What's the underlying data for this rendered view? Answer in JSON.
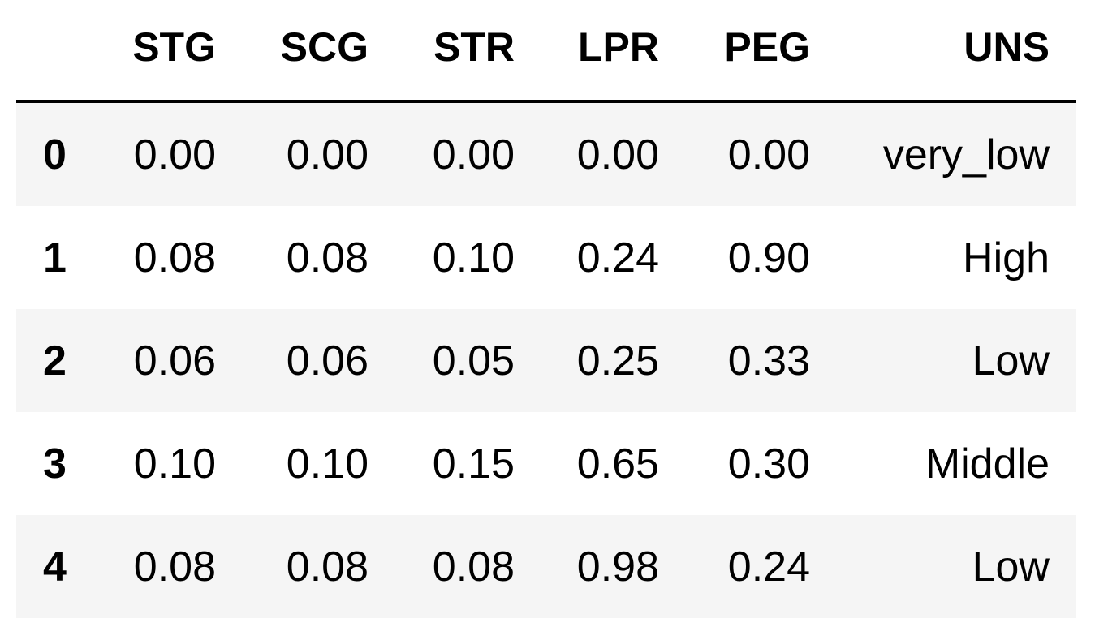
{
  "table": {
    "index_header": "",
    "columns": [
      "STG",
      "SCG",
      "STR",
      "LPR",
      "PEG",
      "UNS"
    ],
    "rows": [
      {
        "index": "0",
        "cells": [
          "0.00",
          "0.00",
          "0.00",
          "0.00",
          "0.00",
          "very_low"
        ]
      },
      {
        "index": "1",
        "cells": [
          "0.08",
          "0.08",
          "0.10",
          "0.24",
          "0.90",
          "High"
        ]
      },
      {
        "index": "2",
        "cells": [
          "0.06",
          "0.06",
          "0.05",
          "0.25",
          "0.33",
          "Low"
        ]
      },
      {
        "index": "3",
        "cells": [
          "0.10",
          "0.10",
          "0.15",
          "0.65",
          "0.30",
          "Middle"
        ]
      },
      {
        "index": "4",
        "cells": [
          "0.08",
          "0.08",
          "0.08",
          "0.98",
          "0.24",
          "Low"
        ]
      }
    ]
  },
  "colors": {
    "stripe": "#f5f5f5",
    "header_rule": "#000000",
    "text": "#000000"
  }
}
